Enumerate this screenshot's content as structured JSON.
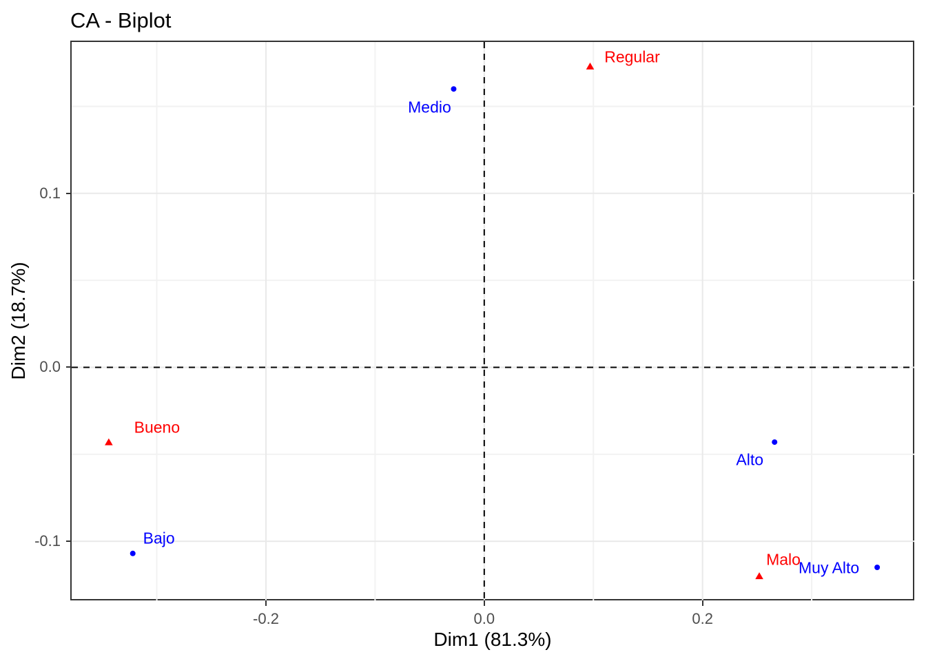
{
  "title": "CA - Biplot",
  "colors": {
    "row_points": "#0000ff",
    "col_points": "#ff0000",
    "grid_major": "#e9e9e9",
    "grid_minor": "#f2f2f2",
    "panel_border": "#333333",
    "tick_text": "#4d4d4d",
    "reference_line": "#000000",
    "title_text": "#000000"
  },
  "chart_data": {
    "type": "scatter",
    "title": "CA - Biplot",
    "xlabel": "Dim1 (81.3%)",
    "ylabel": "Dim2 (18.7%)",
    "xlim": [
      -0.378,
      0.394
    ],
    "ylim": [
      -0.134,
      0.187
    ],
    "x_ticks": [
      -0.2,
      0.0,
      0.2
    ],
    "x_tick_labels": [
      "-0.2",
      "0.0",
      "0.2"
    ],
    "y_ticks": [
      -0.1,
      0.0,
      0.1
    ],
    "y_tick_labels": [
      "-0.1",
      "0.0",
      "0.1"
    ],
    "x_minor_ticks": [
      -0.3,
      -0.1,
      0.1,
      0.3
    ],
    "y_minor_ticks": [
      -0.05,
      0.05,
      0.15
    ],
    "grid": true,
    "legend_position": "none",
    "reference_lines": {
      "vline_x": 0,
      "hline_y": 0,
      "style": "dashed",
      "color": "#000000"
    },
    "series": [
      {
        "name": "rows",
        "marker": "circle",
        "color": "#0000ff",
        "points": [
          {
            "label": "Medio",
            "x": -0.028,
            "y": 0.16,
            "label_dx": -35,
            "label_dy": 27
          },
          {
            "label": "Bajo",
            "x": -0.322,
            "y": -0.107,
            "label_dx": 38,
            "label_dy": -22
          },
          {
            "label": "Alto",
            "x": 0.266,
            "y": -0.043,
            "label_dx": -36,
            "label_dy": 26
          },
          {
            "label": "Muy Alto",
            "x": 0.36,
            "y": -0.115,
            "label_dx": -70,
            "label_dy": 1
          }
        ]
      },
      {
        "name": "columns",
        "marker": "triangle",
        "color": "#ff0000",
        "points": [
          {
            "label": "Regular",
            "x": 0.097,
            "y": 0.173,
            "label_dx": 61,
            "label_dy": -13
          },
          {
            "label": "Bueno",
            "x": -0.344,
            "y": -0.043,
            "label_dx": 70,
            "label_dy": -21
          },
          {
            "label": "Malo",
            "x": 0.252,
            "y": -0.12,
            "label_dx": 35,
            "label_dy": -24
          }
        ]
      }
    ]
  }
}
